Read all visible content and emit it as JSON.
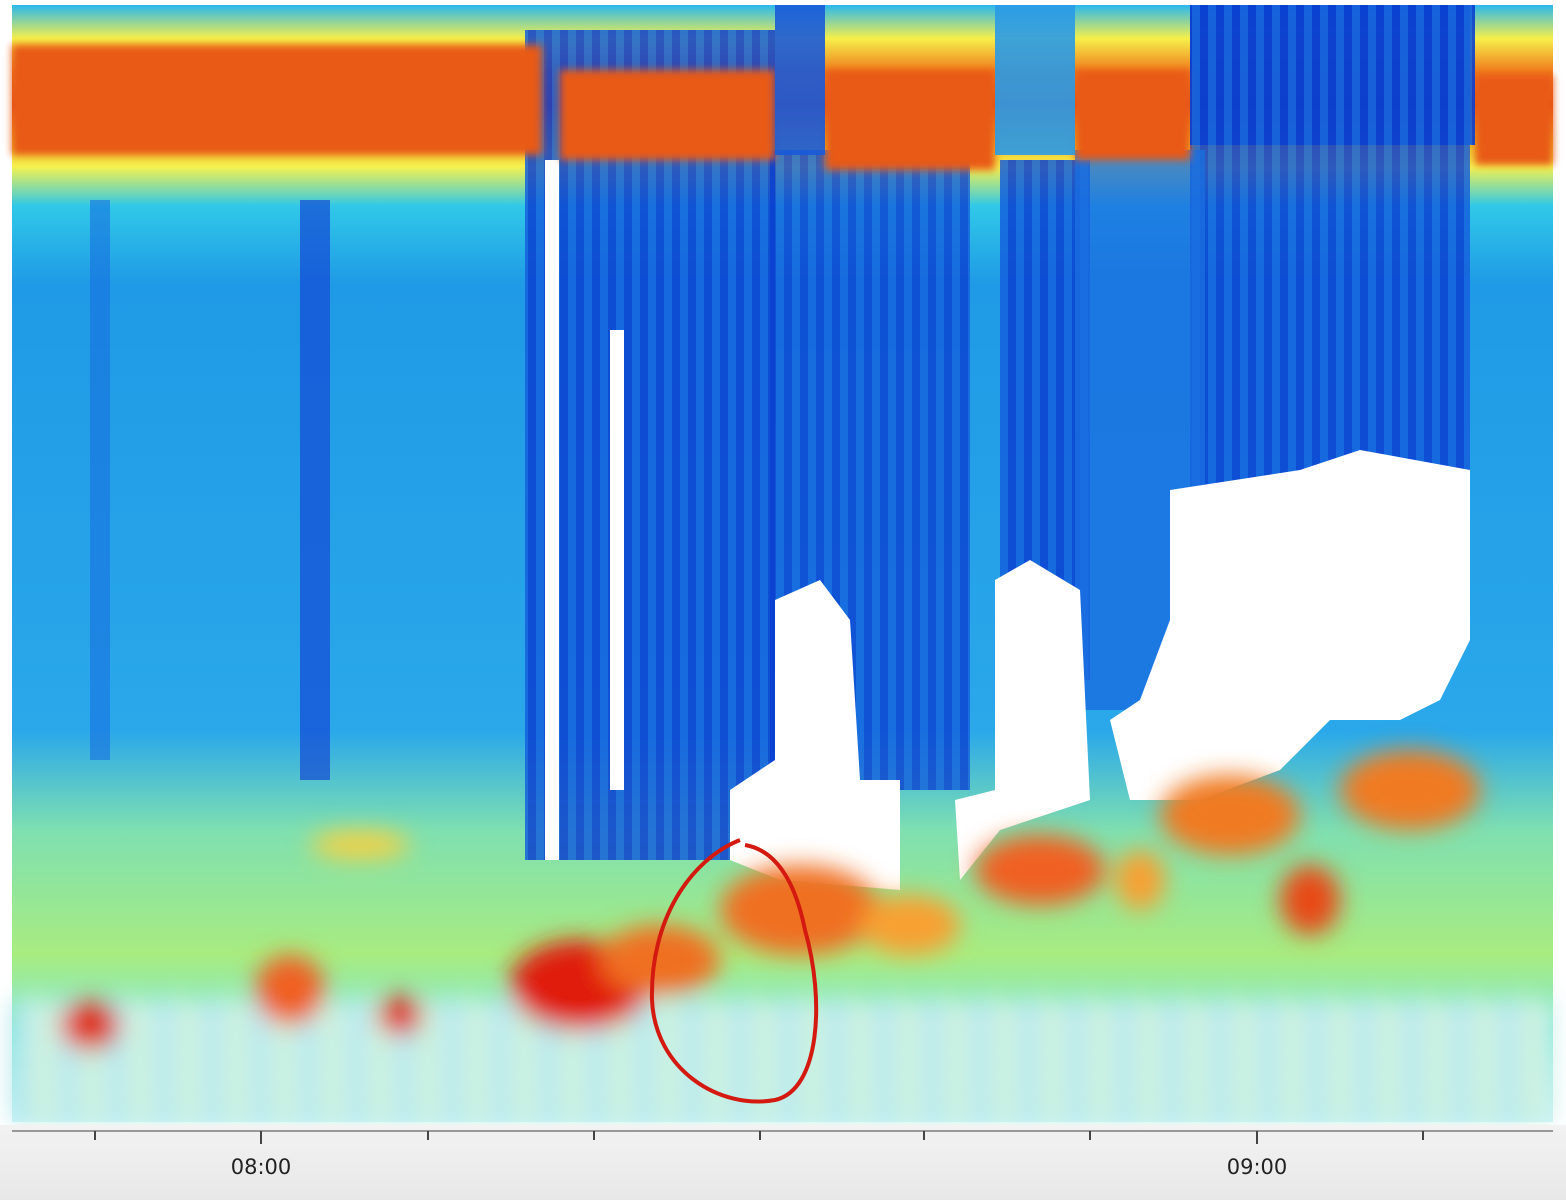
{
  "time_axis": {
    "labels": [
      "08:00",
      "09:00"
    ]
  }
}
